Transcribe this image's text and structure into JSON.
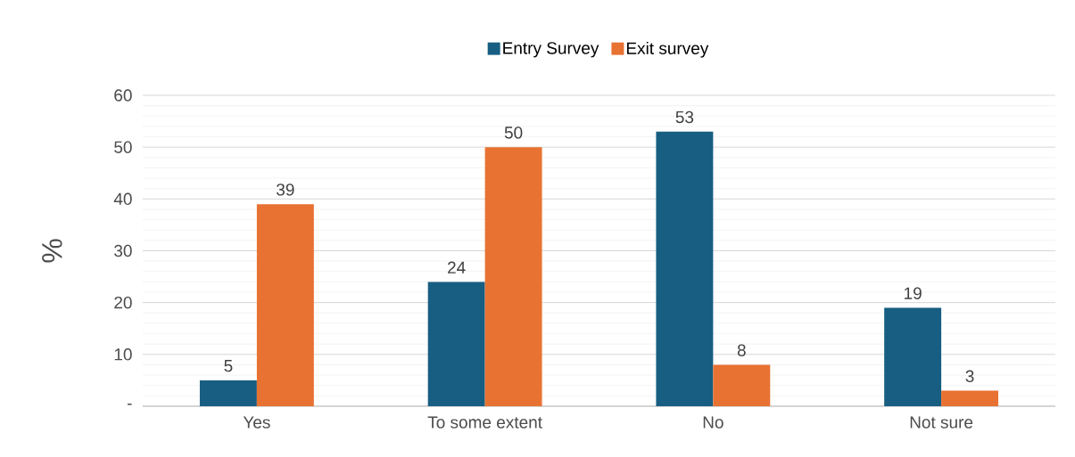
{
  "chart_data": {
    "type": "bar",
    "ylabel": "%",
    "categories": [
      "Yes",
      "To some extent",
      "No",
      "Not sure"
    ],
    "series": [
      {
        "name": "Entry Survey",
        "color": "#175e82",
        "values": [
          5,
          24,
          53,
          19
        ]
      },
      {
        "name": "Exit survey",
        "color": "#e87232",
        "values": [
          39,
          50,
          8,
          3
        ]
      }
    ],
    "ylim": [
      0,
      60
    ],
    "yticks": [
      {
        "value": 0,
        "label": "-"
      },
      10,
      20,
      30,
      40,
      50,
      60
    ],
    "grid": "y",
    "legend": "top",
    "data_labels": true
  }
}
